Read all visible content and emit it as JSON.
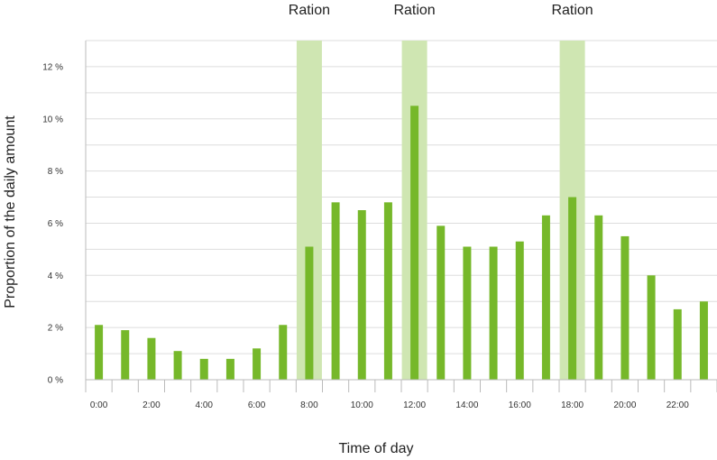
{
  "chart_data": {
    "type": "bar",
    "title": "",
    "xlabel": "Time of day",
    "ylabel": "Proportion of the daily amount",
    "ylim": [
      0,
      13
    ],
    "y_ticks": [
      0,
      2,
      4,
      6,
      8,
      10,
      12
    ],
    "y_tick_labels": [
      "0 %",
      "2 %",
      "4 %",
      "6 %",
      "8 %",
      "10 %",
      "12 %"
    ],
    "grid": true,
    "categories": [
      "0:00",
      "1:00",
      "2:00",
      "3:00",
      "4:00",
      "5:00",
      "6:00",
      "7:00",
      "8:00",
      "9:00",
      "10:00",
      "11:00",
      "12:00",
      "13:00",
      "14:00",
      "15:00",
      "16:00",
      "17:00",
      "18:00",
      "19:00",
      "20:00",
      "21:00",
      "22:00",
      "23:00"
    ],
    "x_tick_labels": [
      "0:00",
      "",
      "2:00",
      "",
      "4:00",
      "",
      "6:00",
      "",
      "8:00",
      "",
      "10:00",
      "",
      "12:00",
      "",
      "14:00",
      "",
      "16:00",
      "",
      "18:00",
      "",
      "20:00",
      "",
      "22:00",
      ""
    ],
    "values": [
      2.1,
      1.9,
      1.6,
      1.1,
      0.8,
      0.8,
      1.2,
      2.1,
      5.1,
      6.8,
      6.5,
      6.8,
      10.5,
      5.9,
      5.1,
      5.1,
      5.3,
      6.3,
      7.0,
      6.3,
      5.5,
      4.0,
      2.7,
      3.0
    ],
    "ration_hours": [
      8,
      12,
      18
    ],
    "ration_label": "Ration",
    "colors": {
      "bar": "#76b82a",
      "ration_band": "#cfe6b2",
      "grid": "#dddddd",
      "axis": "#bbbbbb"
    }
  }
}
